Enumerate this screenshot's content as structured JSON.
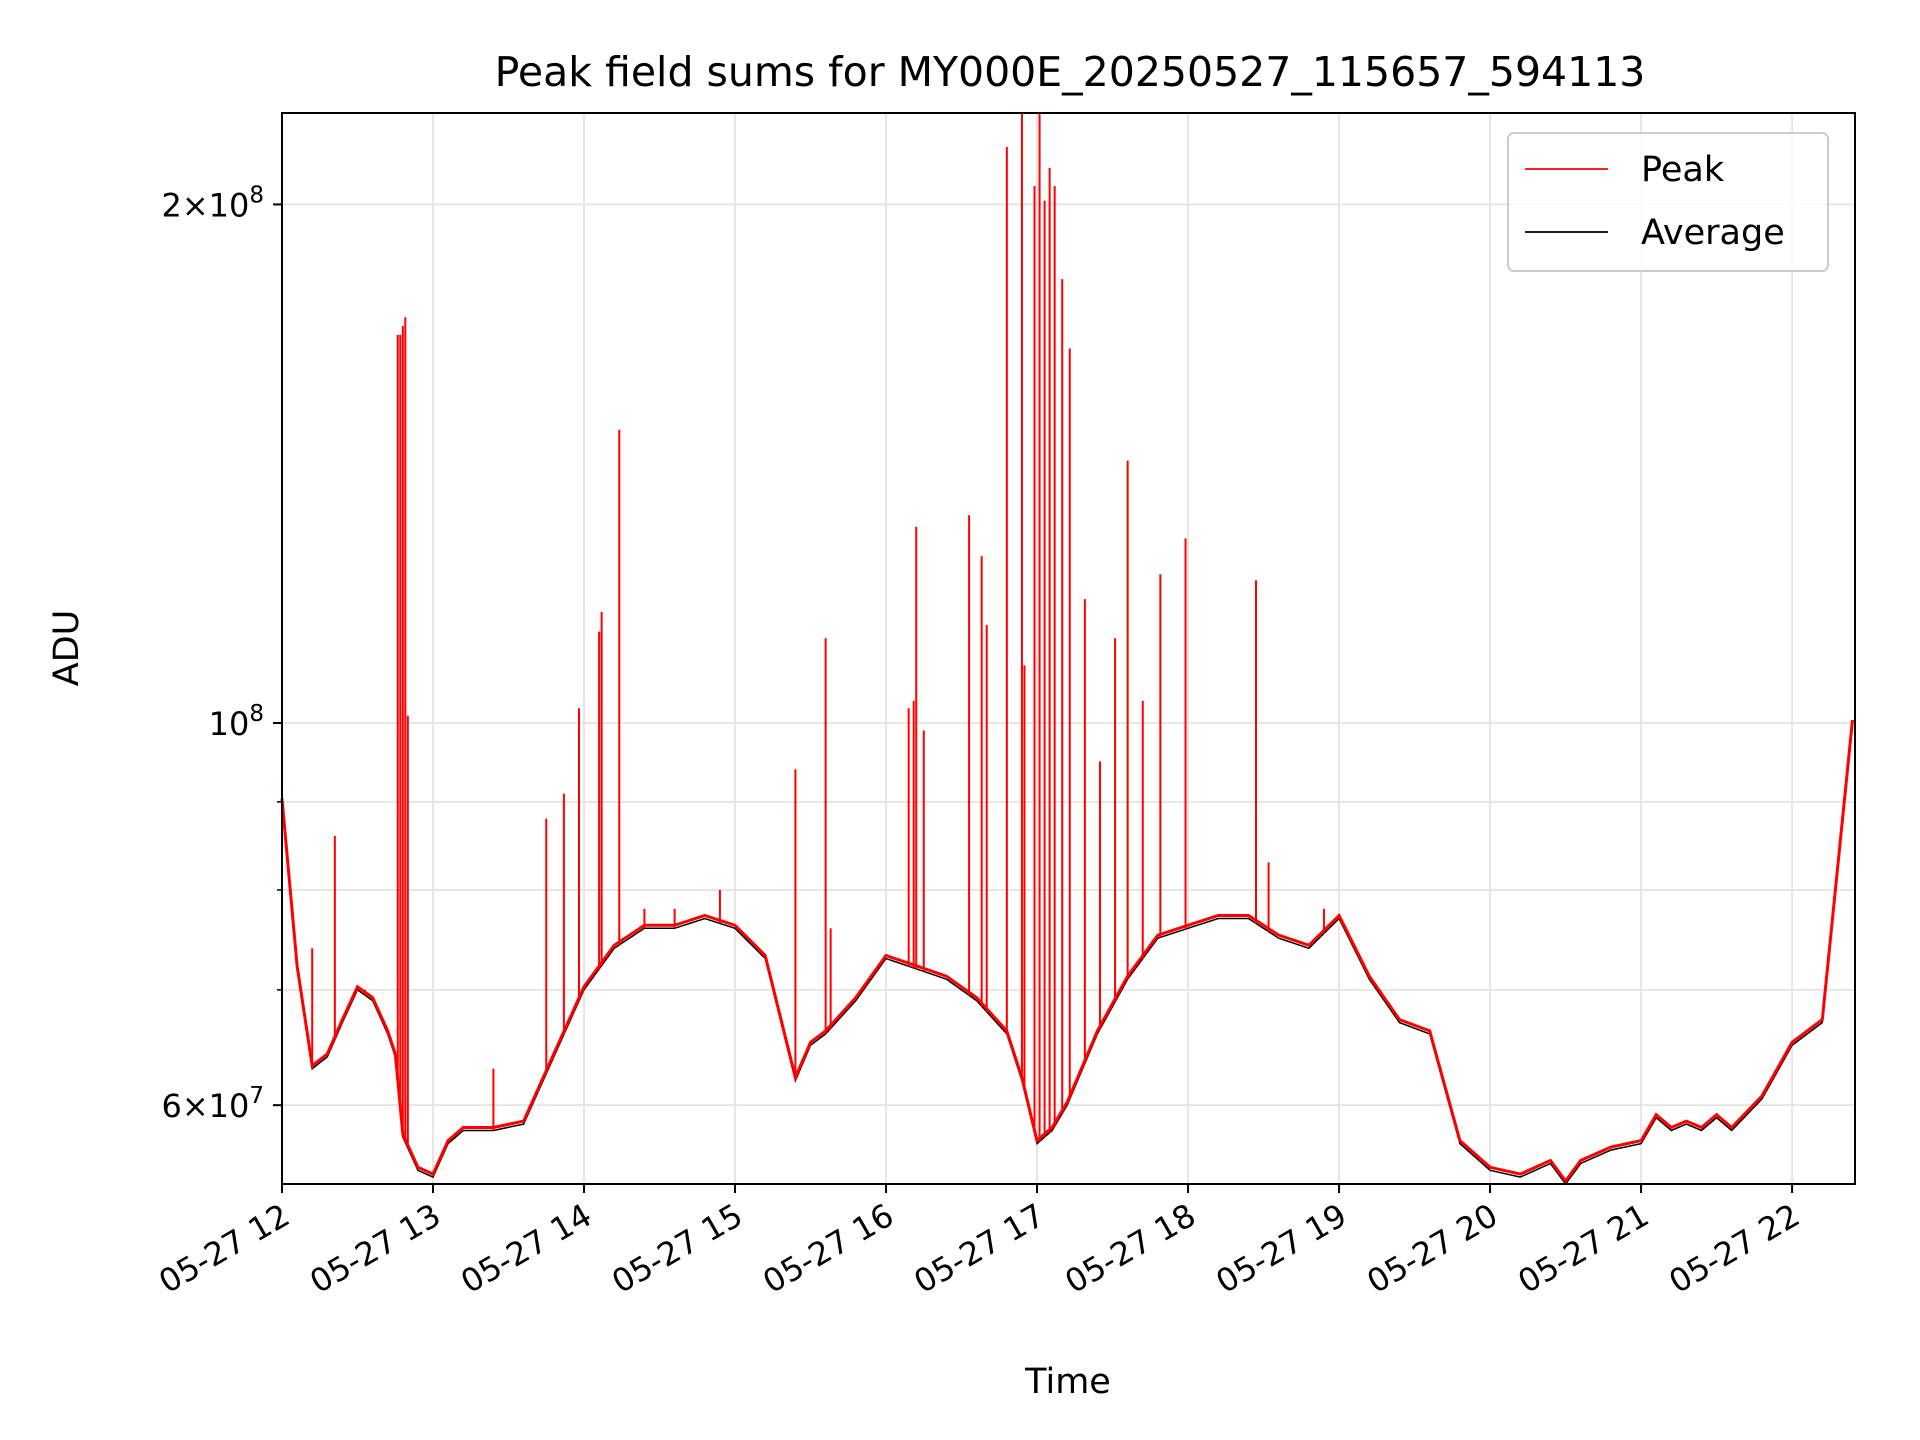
{
  "chart_data": {
    "type": "line",
    "title": "Peak field sums for MY000E_20250527_115657_594113",
    "xlabel": "Time",
    "ylabel": "ADU",
    "yscale": "log",
    "xlim": [
      "2025-05-27 12:00",
      "2025-05-27 22:25"
    ],
    "ylim": [
      54000000,
      226000000
    ],
    "grid": true,
    "legend_position": "top-right",
    "x_ticks": [
      "05-27 12",
      "05-27 13",
      "05-27 14",
      "05-27 15",
      "05-27 16",
      "05-27 17",
      "05-27 18",
      "05-27 19",
      "05-27 20",
      "05-27 21",
      "05-27 22"
    ],
    "y_ticks": [
      {
        "value": 60000000,
        "base": "6",
        "exp": "7"
      },
      {
        "value": 100000000,
        "base": "",
        "exp": "8"
      },
      {
        "value": 200000000,
        "base": "2",
        "exp": "8"
      }
    ],
    "series": [
      {
        "name": "Average",
        "color": "#000000",
        "x": [
          "05-27 12:00",
          "05-27 12:06",
          "05-27 12:12",
          "05-27 12:18",
          "05-27 12:24",
          "05-27 12:30",
          "05-27 12:36",
          "05-27 12:42",
          "05-27 12:45",
          "05-27 12:48",
          "05-27 12:54",
          "05-27 13:00",
          "05-27 13:06",
          "05-27 13:12",
          "05-27 13:24",
          "05-27 13:36",
          "05-27 13:48",
          "05-27 14:00",
          "05-27 14:12",
          "05-27 14:24",
          "05-27 14:36",
          "05-27 14:48",
          "05-27 15:00",
          "05-27 15:12",
          "05-27 15:24",
          "05-27 15:30",
          "05-27 15:36",
          "05-27 15:48",
          "05-27 16:00",
          "05-27 16:12",
          "05-27 16:24",
          "05-27 16:36",
          "05-27 16:48",
          "05-27 16:54",
          "05-27 17:00",
          "05-27 17:06",
          "05-27 17:12",
          "05-27 17:24",
          "05-27 17:36",
          "05-27 17:48",
          "05-27 18:00",
          "05-27 18:12",
          "05-27 18:24",
          "05-27 18:36",
          "05-27 18:48",
          "05-27 19:00",
          "05-27 19:12",
          "05-27 19:24",
          "05-27 19:36",
          "05-27 19:48",
          "05-27 20:00",
          "05-27 20:12",
          "05-27 20:24",
          "05-27 20:30",
          "05-27 20:36",
          "05-27 20:48",
          "05-27 21:00",
          "05-27 21:06",
          "05-27 21:12",
          "05-27 21:18",
          "05-27 21:24",
          "05-27 21:30",
          "05-27 21:36",
          "05-27 21:48",
          "05-27 22:00",
          "05-27 22:12",
          "05-27 22:24"
        ],
        "y": [
          90000000,
          72000000,
          63000000,
          64000000,
          67000000,
          70000000,
          69000000,
          66000000,
          64000000,
          57500000,
          55000000,
          54500000,
          57000000,
          58000000,
          58000000,
          58500000,
          64000000,
          70000000,
          74000000,
          76000000,
          76000000,
          77000000,
          76000000,
          73000000,
          62000000,
          65000000,
          66000000,
          69000000,
          73000000,
          72000000,
          71000000,
          69000000,
          66000000,
          62000000,
          57000000,
          58000000,
          60000000,
          66000000,
          71000000,
          75000000,
          76000000,
          77000000,
          77000000,
          75000000,
          74000000,
          77000000,
          71000000,
          67000000,
          66000000,
          57000000,
          55000000,
          54500000,
          55500000,
          54000000,
          55500000,
          56500000,
          57000000,
          59000000,
          58000000,
          58500000,
          58000000,
          59000000,
          58000000,
          60500000,
          65000000,
          67000000,
          100000000
        ]
      },
      {
        "name": "Peak",
        "color": "#ff0000",
        "x": [
          "05-27 12:12",
          "05-27 12:21",
          "05-27 12:33",
          "05-27 12:46",
          "05-27 12:47",
          "05-27 12:48",
          "05-27 12:49",
          "05-27 12:50",
          "05-27 13:24",
          "05-27 13:45",
          "05-27 13:52",
          "05-27 13:58",
          "05-27 14:06",
          "05-27 14:07",
          "05-27 14:14",
          "05-27 14:24",
          "05-27 14:36",
          "05-27 14:54",
          "05-27 15:24",
          "05-27 15:36",
          "05-27 15:38",
          "05-27 16:09",
          "05-27 16:11",
          "05-27 16:12",
          "05-27 16:15",
          "05-27 16:33",
          "05-27 16:38",
          "05-27 16:40",
          "05-27 16:48",
          "05-27 16:54",
          "05-27 16:55",
          "05-27 16:59",
          "05-27 17:01",
          "05-27 17:03",
          "05-27 17:05",
          "05-27 17:07",
          "05-27 17:10",
          "05-27 17:13",
          "05-27 17:19",
          "05-27 17:25",
          "05-27 17:31",
          "05-27 17:36",
          "05-27 17:42",
          "05-27 17:49",
          "05-27 17:59",
          "05-27 18:27",
          "05-27 18:32",
          "05-27 18:54"
        ],
        "y": [
          74000000,
          86000000,
          70000000,
          168000000,
          168000000,
          170000000,
          172000000,
          101000000,
          63000000,
          88000000,
          91000000,
          102000000,
          113000000,
          116000000,
          148000000,
          78000000,
          78000000,
          80000000,
          94000000,
          112000000,
          76000000,
          102000000,
          103000000,
          130000000,
          99000000,
          132000000,
          125000000,
          114000000,
          216000000,
          226000000,
          108000000,
          205000000,
          226000000,
          201000000,
          210000000,
          205000000,
          181000000,
          165000000,
          118000000,
          95000000,
          112000000,
          142000000,
          103000000,
          122000000,
          128000000,
          121000000,
          83000000,
          78000000
        ]
      }
    ]
  }
}
